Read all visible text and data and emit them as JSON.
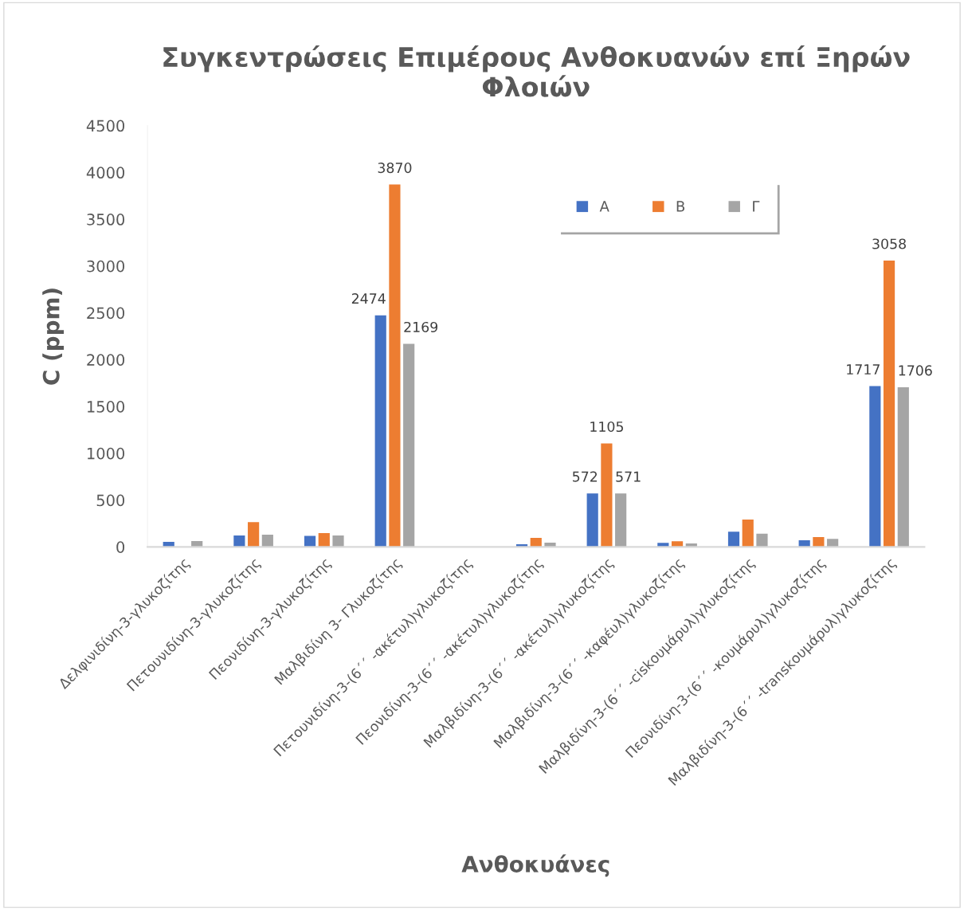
{
  "chart_data": {
    "type": "bar",
    "title": "Συγκεντρώσεις Επιμέρους Ανθοκυανών επί Ξηρών Φλοιών",
    "xlabel": "Ανθοκυάνες",
    "ylabel": "C (ppm)",
    "categories": [
      "Δελφινιδίνη-3-γλυκοζίτης",
      "Πετουνιδίνη-3-γλυκοζίτης",
      "Πεονιδίνη-3-γλυκοζίτης",
      "Μαλβιδίνη 3- Γλυκοζίτης",
      "Πετουνιδίνη-3-(6΄΄ -ακέτυλ)γλυκοζίτης",
      "Πεονιδίνη-3-(6΄΄ -ακέτυλ)γλυκοζίτης",
      "Μαλβιδίνη-3-(6΄΄ -ακέτυλ)γλυκοζίτης",
      "Μαλβιδίνη-3-(6΄΄ -καφέυλ)γλυκοζίτης",
      "Μαλβιδίνη-3-(6΄΄ -ciskουμάρυλ)γλυκοζίτης",
      "Πεονιδίνη-3-(6΄΄ -κουμάρυλ)γλυκοζίτης",
      "Μαλβιδίνη-3-(6΄΄ -transkουμάρυλ)γλυκοζίτης"
    ],
    "series": [
      {
        "name": "Α",
        "color": "#4472c4",
        "values": [
          55,
          122,
          117,
          2474,
          0,
          28,
          572,
          43,
          162,
          71,
          1717
        ],
        "value_labels": [
          null,
          null,
          null,
          "2474",
          null,
          null,
          "572",
          null,
          null,
          null,
          "1717"
        ]
      },
      {
        "name": "Β",
        "color": "#ed7d31",
        "values": [
          0,
          265,
          148,
          3870,
          0,
          96,
          1105,
          60,
          292,
          105,
          3058
        ],
        "value_labels": [
          null,
          null,
          null,
          "3870",
          null,
          null,
          "1105",
          null,
          null,
          null,
          "3058"
        ]
      },
      {
        "name": "Γ",
        "color": "#a5a5a5",
        "values": [
          62,
          130,
          122,
          2169,
          0,
          45,
          571,
          37,
          142,
          85,
          1706
        ],
        "value_labels": [
          null,
          null,
          null,
          "2169",
          null,
          null,
          "571",
          null,
          null,
          null,
          "1706"
        ]
      }
    ],
    "ylim": [
      0,
      4500
    ],
    "yticks": [
      0,
      500,
      1000,
      1500,
      2000,
      2500,
      3000,
      3500,
      4000,
      4500
    ],
    "legend": "top right"
  }
}
